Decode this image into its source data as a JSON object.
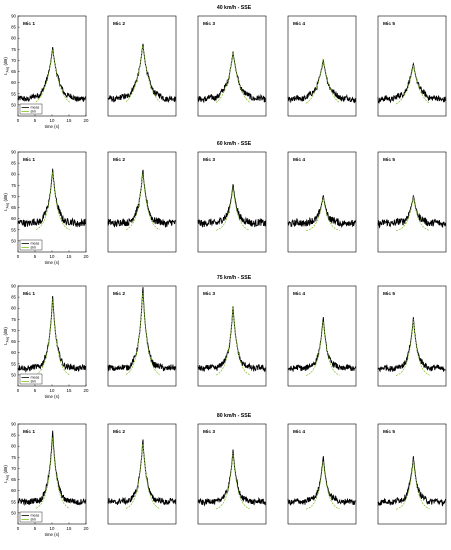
{
  "chart_data": {
    "type": "line",
    "x_unit_label": "time (s)",
    "y_label_main": "L",
    "y_label_sub": "Aeq",
    "y_label_unit": "(dB)",
    "xlim": [
      0,
      20
    ],
    "ylim": [
      45,
      90
    ],
    "x_ticks": [
      0,
      5,
      10,
      15,
      20
    ],
    "y_ticks": [
      50,
      55,
      60,
      65,
      70,
      75,
      80,
      85,
      90
    ],
    "legend": [
      "meas",
      "sim"
    ],
    "colors": {
      "meas": "#000000",
      "sim": "#7fbf1f"
    },
    "panel_names": [
      "Mic 1",
      "Mic 2",
      "Mic 3",
      "Mic 4",
      "Mic 5"
    ],
    "rows": [
      {
        "title": "40 km/h - SSE",
        "baseline": 52.5,
        "noise": 1.3,
        "meas_peaks": [
          76,
          77.5,
          74,
          70.5,
          68.5
        ],
        "sim_peaks": [
          75,
          77,
          73.5,
          71,
          68
        ],
        "width": 1.15
      },
      {
        "title": "60 km/h - SSE",
        "baseline": 58,
        "noise": 1.6,
        "meas_peaks": [
          82.5,
          82,
          75.5,
          70.5,
          70.5
        ],
        "sim_peaks": [
          81,
          81,
          74,
          70,
          70
        ],
        "width": 0.8
      },
      {
        "title": "75 km/h - SSE",
        "baseline": 53,
        "noise": 1.3,
        "meas_peaks": [
          85.5,
          89.5,
          81,
          76,
          76
        ],
        "sim_peaks": [
          84,
          88,
          81,
          75,
          75
        ],
        "width": 0.75
      },
      {
        "title": "80 km/h - SSE",
        "baseline": 55,
        "noise": 1.3,
        "meas_peaks": [
          87,
          83,
          78.5,
          75.5,
          75.5
        ],
        "sim_peaks": [
          84,
          82,
          77,
          74,
          74
        ],
        "width": 0.75
      }
    ]
  }
}
